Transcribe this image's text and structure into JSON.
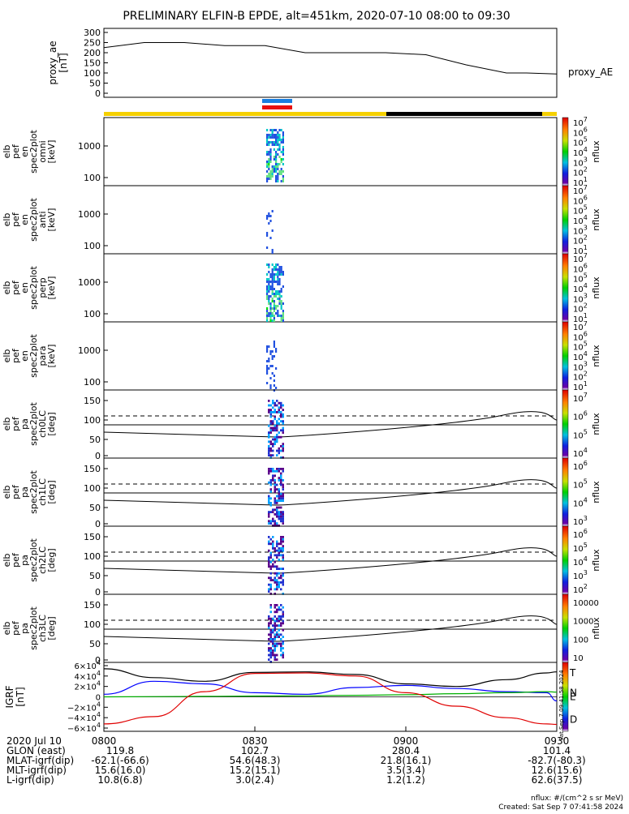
{
  "title": "PRELIMINARY ELFIN-B EPDE, alt=451km, 2020-07-10 08:00 to 09:30",
  "colors": {
    "spec_low": "#3a006f",
    "spec_mid": "#00c8c8",
    "spec_high": "#00e000",
    "sunlit_bar": "#f5d000",
    "shadow_bar": "#000000",
    "science_zone_blue": "#1a7fe0",
    "science_zone_red": "#e81010",
    "n_component": "#0000ff",
    "e_component": "#00b000",
    "d_component": "#e00000",
    "total_component": "#000000"
  },
  "chart_data": [
    {
      "id": "proxy_ae",
      "type": "line",
      "ylabel": "proxy_ae\n[nT]",
      "legend": "proxy_AE",
      "ylim": [
        0,
        300
      ],
      "yticks": [
        "300",
        "250",
        "200",
        "150",
        "100",
        "50",
        "0"
      ],
      "x_minutes": [
        0,
        8,
        16,
        24,
        32,
        40,
        48,
        56,
        64,
        72,
        80,
        84,
        90
      ],
      "y": [
        225,
        250,
        250,
        235,
        235,
        200,
        200,
        200,
        190,
        140,
        100,
        100,
        95
      ]
    },
    {
      "id": "spec_omni",
      "type": "heatmap",
      "ylabel": "elb\npef\nen\nspec2plot\nomni\n[keV]",
      "yticks": [
        "1000",
        "100"
      ],
      "cbar_label": "nflux",
      "cbar_ticks": [
        "10^7",
        "10^6",
        "10^5",
        "10^4",
        "10^3",
        "10^2",
        "10^1"
      ]
    },
    {
      "id": "spec_anti",
      "type": "heatmap",
      "ylabel": "elb\npef\nen\nspec2plot\nanti\n[keV]",
      "yticks": [
        "1000",
        "100"
      ],
      "cbar_label": "nflux",
      "cbar_ticks": [
        "10^7",
        "10^6",
        "10^5",
        "10^4",
        "10^3",
        "10^2",
        "10^1"
      ]
    },
    {
      "id": "spec_perp",
      "type": "heatmap",
      "ylabel": "elb\npef\nen\nspec2plot\nperp\n[keV]",
      "yticks": [
        "1000",
        "100"
      ],
      "cbar_label": "nflux",
      "cbar_ticks": [
        "10^7",
        "10^6",
        "10^5",
        "10^4",
        "10^3",
        "10^2",
        "10^1"
      ]
    },
    {
      "id": "spec_para",
      "type": "heatmap",
      "ylabel": "elb\npef\nen\nspec2plot\npara\n[keV]",
      "yticks": [
        "1000",
        "100"
      ],
      "cbar_label": "nflux",
      "cbar_ticks": [
        "10^7",
        "10^6",
        "10^5",
        "10^4",
        "10^3",
        "10^2",
        "10^1"
      ]
    },
    {
      "id": "pa_ch0",
      "type": "heatmap",
      "ylabel": "elb\npef\npa\nspec2plot\nch0LC\n[deg]",
      "yticks": [
        "150",
        "100",
        "50",
        "0"
      ],
      "cbar_label": "nflux",
      "cbar_ticks": [
        "10^7",
        "10^6",
        "10^5",
        "10^4"
      ]
    },
    {
      "id": "pa_ch1",
      "type": "heatmap",
      "ylabel": "elb\npef\npa\nspec2plot\nch1LC\n[deg]",
      "yticks": [
        "150",
        "100",
        "50",
        "0"
      ],
      "cbar_label": "nflux",
      "cbar_ticks": [
        "10^6",
        "10^5",
        "10^4",
        "10^3"
      ]
    },
    {
      "id": "pa_ch2",
      "type": "heatmap",
      "ylabel": "elb\npef\npa\nspec2plot\nch2LC\n[deg]",
      "yticks": [
        "150",
        "100",
        "50",
        "0"
      ],
      "cbar_label": "nflux",
      "cbar_ticks": [
        "10^6",
        "10^5",
        "10^4",
        "10^3",
        "10^2"
      ]
    },
    {
      "id": "pa_ch3",
      "type": "heatmap",
      "ylabel": "elb\npef\npa\nspec2plot\nch3LC\n[deg]",
      "yticks": [
        "150",
        "100",
        "50",
        "0"
      ],
      "cbar_label": "nflux",
      "cbar_ticks": [
        "10000",
        "1000",
        "100",
        "10"
      ]
    },
    {
      "id": "igrf",
      "type": "line",
      "ylabel": "IGRF\n[nT]",
      "yticks": [
        "6×10^4",
        "4×10^4",
        "2×10^4",
        "0",
        "−2×10^4",
        "−4×10^4",
        "−6×10^4"
      ],
      "ylim": [
        -60000,
        60000
      ],
      "legend": [
        "T",
        "N",
        "E",
        "D"
      ],
      "x_minutes": [
        0,
        10,
        20,
        30,
        40,
        50,
        60,
        70,
        80,
        88,
        90
      ],
      "series": [
        {
          "name": "T",
          "values": [
            54000,
            37000,
            30000,
            47000,
            48000,
            43000,
            25000,
            20000,
            33000,
            46000,
            48000
          ]
        },
        {
          "name": "N",
          "values": [
            5000,
            30000,
            25000,
            8000,
            5000,
            18000,
            22000,
            16000,
            10000,
            8000,
            -8000
          ]
        },
        {
          "name": "E",
          "values": [
            0,
            500,
            1000,
            1500,
            2000,
            3000,
            4000,
            6000,
            8000,
            10000,
            9000
          ]
        },
        {
          "name": "D",
          "values": [
            -52000,
            -38000,
            10000,
            45000,
            46000,
            40000,
            8000,
            -18000,
            -40000,
            -52000,
            -53000
          ]
        }
      ]
    }
  ],
  "x_axis": {
    "ticks": [
      "0800",
      "0830",
      "0900",
      "0930"
    ],
    "row_labels": [
      "2020 Jul 10",
      "GLON (east)",
      "MLAT-igrf(dip)",
      "MLT-igrf(dip)",
      "L-igrf(dip)"
    ],
    "rows": [
      [
        "119.8",
        "102.7",
        "280.4",
        "101.4"
      ],
      [
        "-62.1(-66.6)",
        "54.6(48.3)",
        "21.8(16.1)",
        "-82.7(-80.3)"
      ],
      [
        "15.6(16.0)",
        "15.2(15.1)",
        "3.5(3.4)",
        "12.6(15.6)"
      ],
      [
        "10.8(6.8)",
        "3.0(2.4)",
        "1.2(1.2)",
        "62.6(37.5)"
      ]
    ]
  },
  "footer": {
    "units": "nflux: #/(cm^2 s sr MeV)",
    "created": "Created: Sat Sep  7 07:41:58 2024",
    "side_stamp": "Sat Sep  7 09:41:58 2024"
  }
}
